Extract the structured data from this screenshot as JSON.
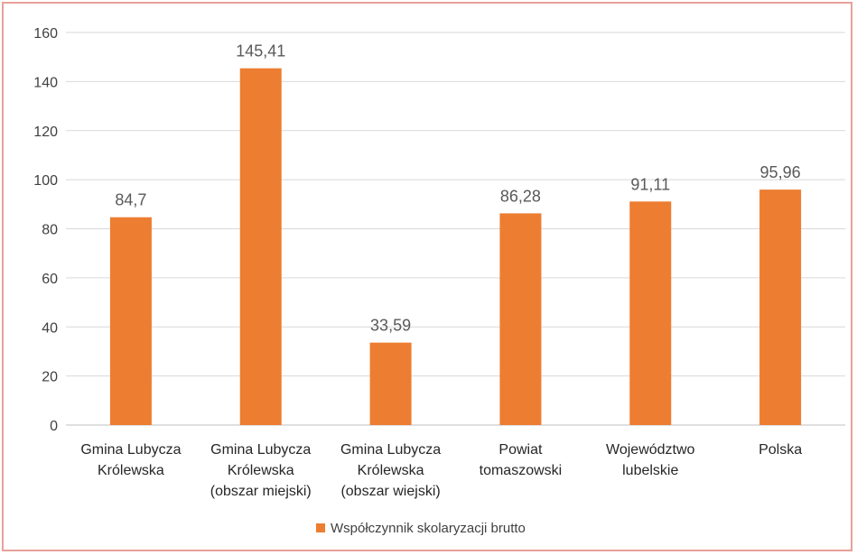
{
  "chart_data": {
    "type": "bar",
    "categories": [
      [
        "Gmina Lubycza",
        "Królewska"
      ],
      [
        "Gmina Lubycza",
        "Królewska",
        "(obszar miejski)"
      ],
      [
        "Gmina Lubycza",
        "Królewska",
        "(obszar wiejski)"
      ],
      [
        "Powiat",
        "tomaszowski"
      ],
      [
        "Województwo",
        "lubelskie"
      ],
      [
        "Polska"
      ]
    ],
    "series": [
      {
        "name": "Współczynnik skolaryzacji brutto",
        "values": [
          84.7,
          145.41,
          33.59,
          86.28,
          91.11,
          95.96
        ],
        "data_labels": [
          "84,7",
          "145,41",
          "33,59",
          "86,28",
          "91,11",
          "95,96"
        ],
        "color": "#ed7d31"
      }
    ],
    "y_ticks": [
      "0",
      "20",
      "40",
      "60",
      "80",
      "100",
      "120",
      "140",
      "160"
    ],
    "ylim": [
      0,
      160
    ],
    "grid": true,
    "legend_position": "bottom",
    "title": "",
    "xlabel": "",
    "ylabel": ""
  },
  "colors": {
    "bar": "#ed7d31",
    "grid": "#d9d9d9",
    "frame_border": "#e8a19a"
  }
}
